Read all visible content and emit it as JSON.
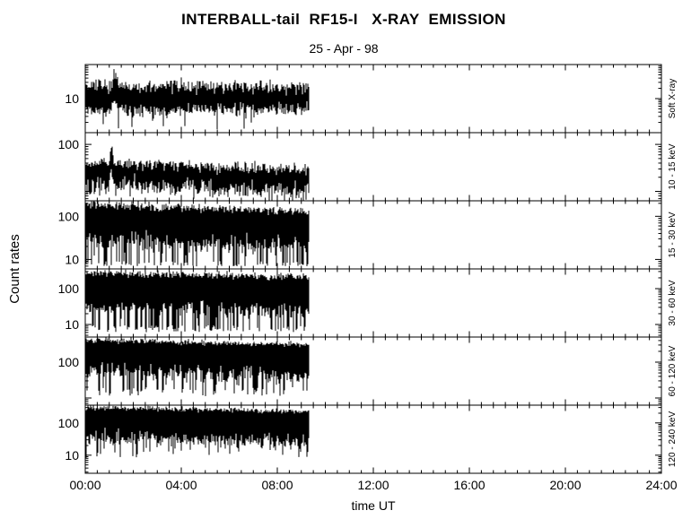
{
  "colors": {
    "foreground": "#000000",
    "background": "#ffffff"
  },
  "chart_data": {
    "type": "line",
    "title": "INTERBALL-tail  RF15-I   X-RAY  EMISSION",
    "subtitle": "25 - Apr - 98",
    "xlabel": "time UT",
    "ylabel": "Count rates",
    "x": {
      "range_hours": [
        0,
        24
      ],
      "tick_labels": [
        "00:00",
        "04:00",
        "08:00",
        "12:00",
        "16:00",
        "20:00",
        "24:00"
      ],
      "major_step_h": 4,
      "minor_step_h": 0.5
    },
    "data_start_hour": 0,
    "data_end_hour": 9.33,
    "panels": [
      {
        "name": "soft-xray",
        "right_label": "Soft X-ray",
        "log_top": 2.0,
        "log_bottom": 0.0,
        "seed": 11,
        "labeled_ticks": [
          {
            "value": 10,
            "label": "10"
          }
        ],
        "band": {
          "top0": 1.38,
          "top1": 1.33,
          "tj": 0.1,
          "bot0": 0.65,
          "bot1": 0.68,
          "bj": 0.1,
          "spike_prob": 0.025,
          "spike_lo": 0.1,
          "spike_range": 0.3
        },
        "flare": {
          "t": 1.25,
          "sigma": 0.1,
          "amp": 0.45
        }
      },
      {
        "name": "10-15keV",
        "right_label": "10 - 15 keV",
        "log_top": 2.25,
        "log_bottom": 0.8,
        "seed": 22,
        "labeled_ticks": [
          {
            "value": 100,
            "label": "100"
          }
        ],
        "band": {
          "top0": 1.62,
          "top1": 1.46,
          "tj": 0.06,
          "bot0": 1.15,
          "bot1": 0.98,
          "bj": 0.1,
          "spike_prob": 0.05,
          "spike_lo": 0.84,
          "spike_range": 0.15
        },
        "flare": {
          "t": 1.08,
          "sigma": 0.05,
          "amp": 0.48
        }
      },
      {
        "name": "15-30keV",
        "right_label": "15 - 30 keV",
        "log_top": 2.36,
        "log_bottom": 0.78,
        "seed": 33,
        "labeled_ticks": [
          {
            "value": 100,
            "label": "100"
          },
          {
            "value": 10,
            "label": "10"
          }
        ],
        "band": {
          "top0": 2.26,
          "top1": 2.12,
          "tj": 0.05,
          "bot0": 1.42,
          "bot1": 1.3,
          "bj": 0.12,
          "spike_prob": 0.3,
          "spike_lo": 0.84,
          "spike_range": 0.12
        }
      },
      {
        "name": "30-60keV",
        "right_label": "30 - 60 keV",
        "log_top": 2.55,
        "log_bottom": 0.65,
        "seed": 44,
        "labeled_ticks": [
          {
            "value": 100,
            "label": "100"
          },
          {
            "value": 10,
            "label": "10"
          }
        ],
        "band": {
          "top0": 2.44,
          "top1": 2.33,
          "tj": 0.05,
          "bot0": 1.48,
          "bot1": 1.36,
          "bj": 0.12,
          "spike_prob": 0.35,
          "spike_lo": 0.78,
          "spike_range": 0.2
        }
      },
      {
        "name": "60-120keV",
        "right_label": "60 - 120 keV",
        "log_top": 2.7,
        "log_bottom": 0.8,
        "seed": 55,
        "labeled_ticks": [
          {
            "value": 100,
            "label": "100"
          }
        ],
        "band": {
          "top0": 2.62,
          "top1": 2.48,
          "tj": 0.04,
          "bot0": 1.78,
          "bot1": 1.56,
          "bj": 0.12,
          "spike_prob": 0.18,
          "spike_lo": 1.05,
          "spike_range": 0.25
        }
      },
      {
        "name": "120-240keV",
        "right_label": "120 - 240 keV",
        "log_top": 2.55,
        "log_bottom": 0.44,
        "seed": 66,
        "labeled_ticks": [
          {
            "value": 100,
            "label": "100"
          },
          {
            "value": 10,
            "label": "10"
          }
        ],
        "band": {
          "top0": 2.48,
          "top1": 2.36,
          "tj": 0.04,
          "bot0": 1.56,
          "bot1": 1.38,
          "bj": 0.12,
          "spike_prob": 0.1,
          "spike_lo": 0.92,
          "spike_range": 0.35
        }
      }
    ]
  }
}
